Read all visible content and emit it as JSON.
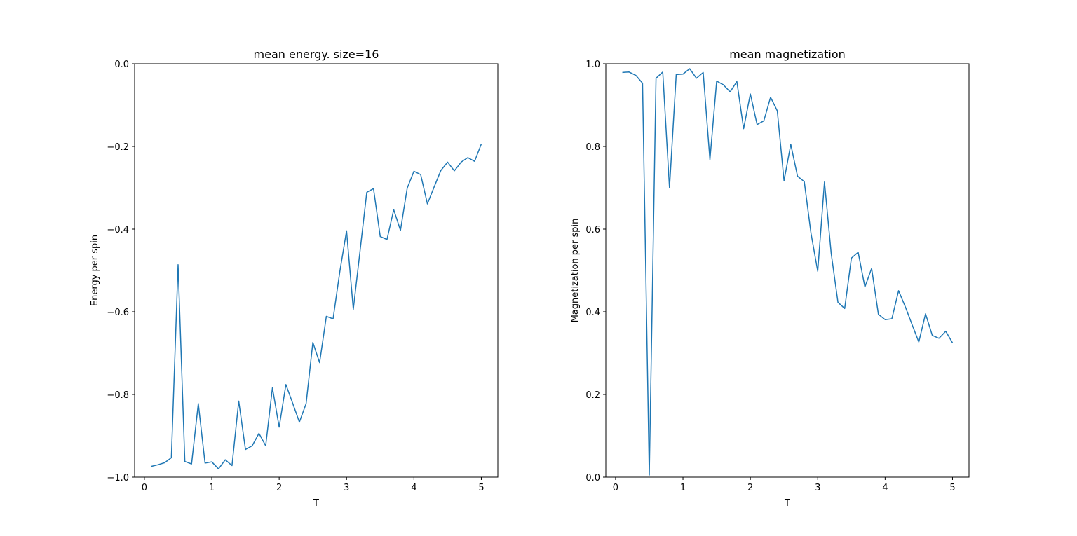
{
  "chart_data": [
    {
      "type": "line",
      "title": "mean energy. size=16",
      "xlabel": "T",
      "ylabel": "Energy per spin",
      "xlim": [
        -0.145,
        5.245
      ],
      "ylim": [
        -1.0,
        0.0
      ],
      "xticks": [
        0,
        1,
        2,
        3,
        4,
        5
      ],
      "xtick_labels": [
        "0",
        "1",
        "2",
        "3",
        "4",
        "5"
      ],
      "yticks": [
        -1.0,
        -0.8,
        -0.6,
        -0.4,
        -0.2,
        0.0
      ],
      "ytick_labels": [
        "−1.0",
        "−0.8",
        "−0.6",
        "−0.4",
        "−0.2",
        "0.0"
      ],
      "grid": false,
      "color": "#1f77b4",
      "series": [
        {
          "name": "energy",
          "x": [
            0.1,
            0.2,
            0.3,
            0.4,
            0.5,
            0.6,
            0.7,
            0.8,
            0.9,
            1.0,
            1.1,
            1.2,
            1.3,
            1.4,
            1.5,
            1.6,
            1.7,
            1.8,
            1.9,
            2.0,
            2.1,
            2.2,
            2.3,
            2.4,
            2.5,
            2.6,
            2.7,
            2.8,
            2.9,
            3.0,
            3.1,
            3.2,
            3.3,
            3.4,
            3.5,
            3.6,
            3.7,
            3.8,
            3.9,
            4.0,
            4.1,
            4.2,
            4.3,
            4.4,
            4.5,
            4.6,
            4.7,
            4.8,
            4.9,
            5.0
          ],
          "y": [
            -0.974,
            -0.97,
            -0.965,
            -0.953,
            -0.486,
            -0.962,
            -0.968,
            -0.822,
            -0.966,
            -0.963,
            -0.98,
            -0.958,
            -0.972,
            -0.816,
            -0.933,
            -0.924,
            -0.894,
            -0.924,
            -0.784,
            -0.879,
            -0.776,
            -0.821,
            -0.867,
            -0.822,
            -0.674,
            -0.723,
            -0.611,
            -0.617,
            -0.503,
            -0.404,
            -0.594,
            -0.453,
            -0.311,
            -0.302,
            -0.418,
            -0.425,
            -0.353,
            -0.403,
            -0.301,
            -0.26,
            -0.268,
            -0.339,
            -0.298,
            -0.258,
            -0.238,
            -0.259,
            -0.238,
            -0.227,
            -0.236,
            -0.194
          ]
        }
      ]
    },
    {
      "type": "line",
      "title": "mean magnetization",
      "xlabel": "T",
      "ylabel": "Magnetization per spin",
      "xlim": [
        -0.145,
        5.245
      ],
      "ylim": [
        0.0,
        1.0
      ],
      "xticks": [
        0,
        1,
        2,
        3,
        4,
        5
      ],
      "xtick_labels": [
        "0",
        "1",
        "2",
        "3",
        "4",
        "5"
      ],
      "yticks": [
        0.0,
        0.2,
        0.4,
        0.6,
        0.8,
        1.0
      ],
      "ytick_labels": [
        "0.0",
        "0.2",
        "0.4",
        "0.6",
        "0.8",
        "1.0"
      ],
      "grid": false,
      "color": "#1f77b4",
      "series": [
        {
          "name": "magnetization",
          "x": [
            0.1,
            0.2,
            0.3,
            0.4,
            0.5,
            0.6,
            0.7,
            0.8,
            0.9,
            1.0,
            1.1,
            1.2,
            1.3,
            1.4,
            1.5,
            1.6,
            1.7,
            1.8,
            1.9,
            2.0,
            2.1,
            2.2,
            2.3,
            2.4,
            2.5,
            2.6,
            2.7,
            2.8,
            2.9,
            3.0,
            3.1,
            3.2,
            3.3,
            3.4,
            3.5,
            3.6,
            3.7,
            3.8,
            3.9,
            4.0,
            4.1,
            4.2,
            4.3,
            4.4,
            4.5,
            4.6,
            4.7,
            4.8,
            4.9,
            5.0
          ],
          "y": [
            0.979,
            0.98,
            0.972,
            0.953,
            0.005,
            0.965,
            0.98,
            0.7,
            0.974,
            0.975,
            0.988,
            0.965,
            0.979,
            0.768,
            0.958,
            0.949,
            0.932,
            0.957,
            0.843,
            0.927,
            0.853,
            0.862,
            0.919,
            0.886,
            0.717,
            0.805,
            0.728,
            0.715,
            0.59,
            0.498,
            0.714,
            0.541,
            0.423,
            0.408,
            0.53,
            0.544,
            0.46,
            0.505,
            0.394,
            0.381,
            0.383,
            0.451,
            0.412,
            0.369,
            0.327,
            0.395,
            0.343,
            0.336,
            0.353,
            0.325
          ]
        }
      ]
    }
  ]
}
